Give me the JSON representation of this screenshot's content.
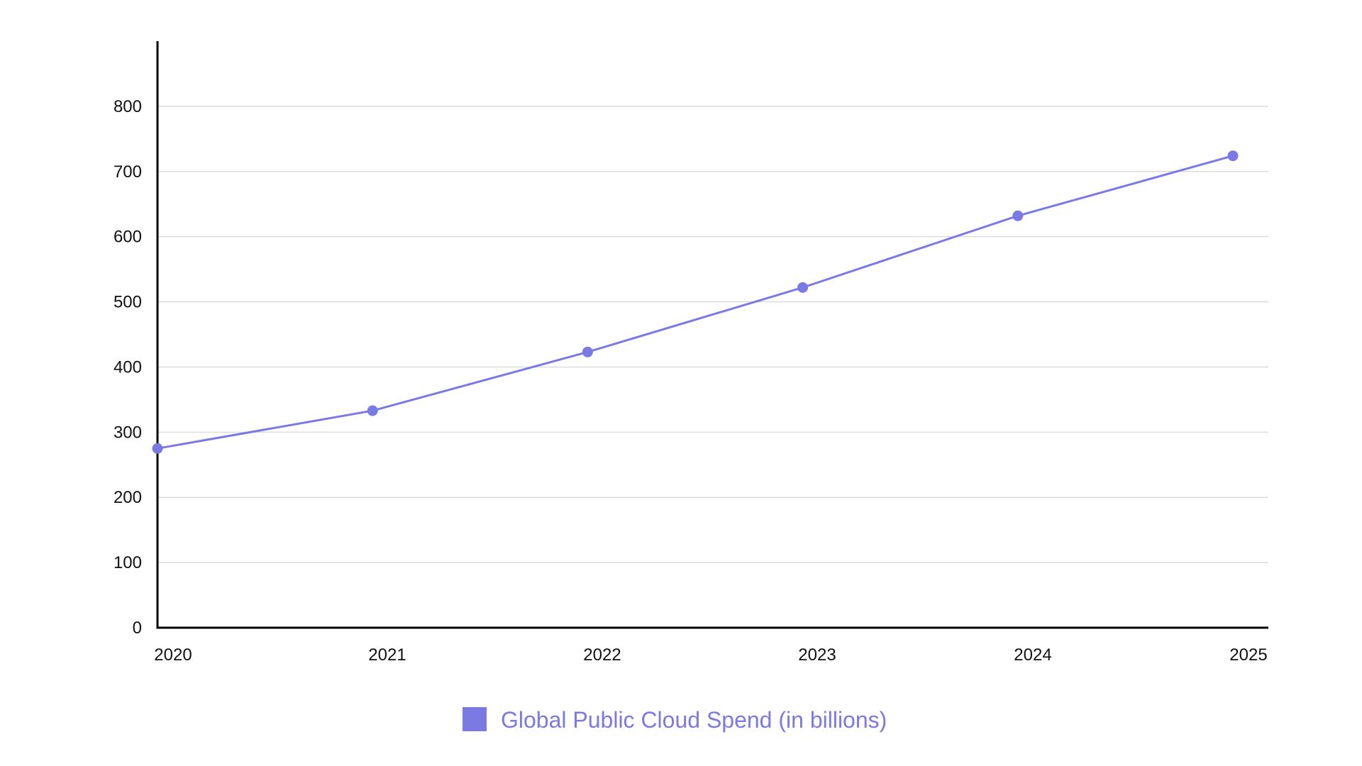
{
  "chart_data": {
    "type": "line",
    "title": "",
    "xlabel": "",
    "ylabel": "",
    "categories": [
      "2020",
      "2021",
      "2022",
      "2023",
      "2024",
      "2025"
    ],
    "series": [
      {
        "name": "Global Public Cloud Spend (in billions)",
        "values": [
          275,
          333,
          423,
          522,
          632,
          724
        ],
        "color": "#7b79e3"
      }
    ],
    "ylim": [
      0,
      900
    ],
    "yticks": [
      0,
      100,
      200,
      300,
      400,
      500,
      600,
      700,
      800
    ],
    "grid": true,
    "legend_position": "bottom-center"
  }
}
